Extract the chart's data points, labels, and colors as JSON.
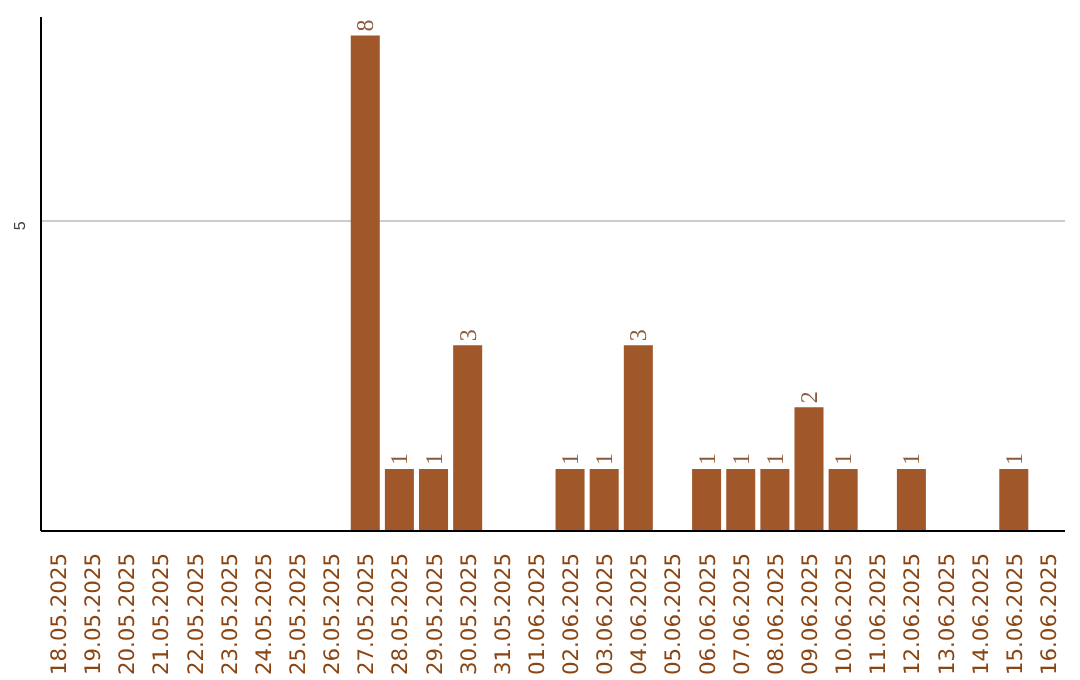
{
  "chart_data": {
    "type": "bar",
    "categories": [
      "18.05.2025",
      "19.05.2025",
      "20.05.2025",
      "21.05.2025",
      "22.05.2025",
      "23.05.2025",
      "24.05.2025",
      "25.05.2025",
      "26.05.2025",
      "27.05.2025",
      "28.05.2025",
      "29.05.2025",
      "30.05.2025",
      "31.05.2025",
      "01.06.2025",
      "02.06.2025",
      "03.06.2025",
      "04.06.2025",
      "05.06.2025",
      "06.06.2025",
      "07.06.2025",
      "08.06.2025",
      "09.06.2025",
      "10.06.2025",
      "11.06.2025",
      "12.06.2025",
      "13.06.2025",
      "14.06.2025",
      "15.06.2025",
      "16.06.2025"
    ],
    "values": [
      0,
      0,
      0,
      0,
      0,
      0,
      0,
      0,
      0,
      8,
      1,
      1,
      3,
      0,
      0,
      1,
      1,
      3,
      0,
      1,
      1,
      1,
      2,
      1,
      0,
      1,
      0,
      0,
      1,
      0
    ],
    "value_labels": [
      null,
      null,
      null,
      null,
      null,
      null,
      null,
      null,
      null,
      "8",
      "1",
      "1",
      "3",
      null,
      null,
      "1",
      "1",
      "3",
      null,
      "1",
      "1",
      "1",
      "2",
      "1",
      null,
      "1",
      null,
      null,
      "1",
      null
    ],
    "color": "#a0572a",
    "ylim": [
      0,
      8.3
    ],
    "yticks": [
      5
    ],
    "grid": "y"
  }
}
